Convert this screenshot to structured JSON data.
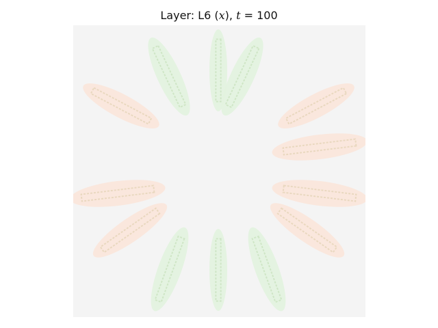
{
  "title": {
    "prefix": "Layer: L6 (",
    "variable": "x",
    "middle": "), ",
    "time_symbol": "t",
    "equals": " = ",
    "time_value": "100"
  },
  "image": {
    "background_color": "#f4f4f4",
    "petal_colors": {
      "green_fill": "#e2f3df",
      "green_stroke": "#c9e6c4",
      "orange_fill": "#fbe6da",
      "orange_stroke": "#efd2be",
      "midrib_green": "#cfe6c6",
      "midrib_orange": "#e9d8bf"
    },
    "petal_count": 12
  }
}
